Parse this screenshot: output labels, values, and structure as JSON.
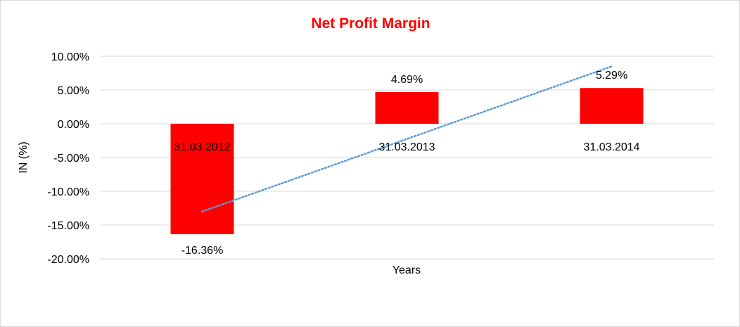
{
  "chart_data": {
    "type": "bar",
    "title": "Net Profit Margin",
    "xlabel": "Years",
    "ylabel": "IN (%)",
    "categories": [
      "31.03.2012",
      "31.03.2013",
      "31.03.2014"
    ],
    "values": [
      -16.36,
      4.69,
      5.29
    ],
    "data_labels": [
      "-16.36%",
      "4.69%",
      "5.29%"
    ],
    "ylim": [
      -20,
      10
    ],
    "y_ticks": [
      10,
      5,
      0,
      -5,
      -10,
      -15,
      -20
    ],
    "y_tick_labels": [
      "10.00%",
      "5.00%",
      "0.00%",
      "-5.00%",
      "-10.00%",
      "-15.00%",
      "-20.00%"
    ],
    "grid": true,
    "legend": "none",
    "trendline": {
      "type": "linear",
      "style": "dotted",
      "start_value": -13.0,
      "end_value": 8.5
    },
    "colors": {
      "title": "#ff0000",
      "bar": "#ff0000",
      "trendline": "#5b9bd5",
      "grid": "#d9d9d9"
    }
  }
}
